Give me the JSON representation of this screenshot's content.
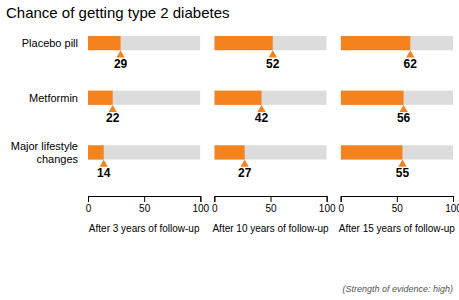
{
  "chart_data": {
    "type": "bar",
    "orientation": "horizontal",
    "title": "Chance of getting type 2 diabetes",
    "subtitle": "(Strength of evidence: high)",
    "categories": [
      "Placebo pill",
      "Metformin",
      "Major lifestyle\nchanges"
    ],
    "series": [
      {
        "name": "After 3 years of follow-up",
        "values": [
          29,
          22,
          14
        ]
      },
      {
        "name": "After 10 years of follow-up",
        "values": [
          52,
          42,
          27
        ]
      },
      {
        "name": "After 15 years of follow-up",
        "values": [
          62,
          56,
          55
        ]
      }
    ],
    "color": "#F4831F",
    "xlim": [
      0,
      100
    ],
    "xticks": [
      0,
      50,
      100
    ],
    "data_labels": true
  }
}
